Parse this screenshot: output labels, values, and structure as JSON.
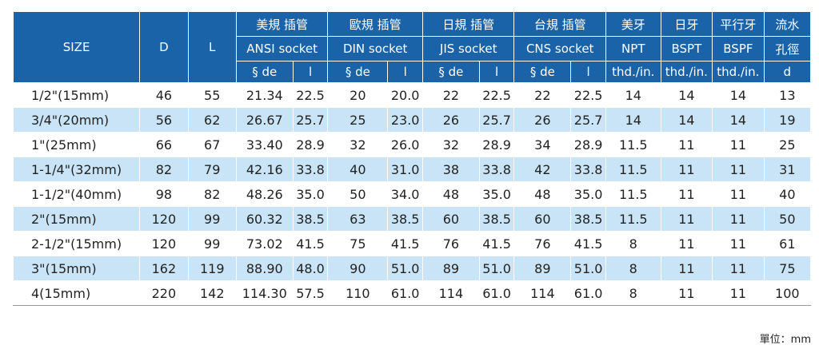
{
  "header": {
    "size": "SIZE",
    "d": "D",
    "l": "L",
    "groups": [
      {
        "cn": "美規 插管",
        "en": "ANSI socket"
      },
      {
        "cn": "歐規 插管",
        "en": "DIN socket"
      },
      {
        "cn": "日規 插管",
        "en": "JIS socket"
      },
      {
        "cn": "台規 插管",
        "en": "CNS socket"
      }
    ],
    "sub": [
      "§ de",
      "l"
    ],
    "threads": [
      {
        "cn": "美牙",
        "en": "NPT",
        "unit": "thd./in."
      },
      {
        "cn": "日牙",
        "en": "BSPT",
        "unit": "thd./in."
      },
      {
        "cn": "平行牙",
        "en": "BSPF",
        "unit": "thd./in."
      },
      {
        "cn": "流水",
        "en": "孔徑",
        "unit": "d"
      }
    ]
  },
  "rows": [
    {
      "size": "1/2\"(15mm)",
      "vals": [
        "46",
        "55",
        "21.34",
        "22.5",
        "20",
        "20.0",
        "22",
        "22.5",
        "22",
        "22.5",
        "14",
        "14",
        "14",
        "13"
      ]
    },
    {
      "size": "3/4\"(20mm)",
      "vals": [
        "56",
        "62",
        "26.67",
        "25.7",
        "25",
        "23.0",
        "26",
        "25.7",
        "26",
        "25.7",
        "14",
        "14",
        "14",
        "19"
      ]
    },
    {
      "size": "1\"(25mm)",
      "vals": [
        "66",
        "67",
        "33.40",
        "28.9",
        "32",
        "26.0",
        "32",
        "28.9",
        "34",
        "28.9",
        "11.5",
        "11",
        "11",
        "25"
      ]
    },
    {
      "size": "1-1/4\"(32mm)",
      "vals": [
        "82",
        "79",
        "42.16",
        "33.8",
        "40",
        "31.0",
        "38",
        "33.8",
        "42",
        "33.8",
        "11.5",
        "11",
        "11",
        "31"
      ]
    },
    {
      "size": "1-1/2\"(40mm)",
      "vals": [
        "98",
        "82",
        "48.26",
        "35.0",
        "50",
        "34.0",
        "48",
        "35.0",
        "48",
        "35.0",
        "11.5",
        "11",
        "11",
        "40"
      ]
    },
    {
      "size": "2\"(15mm)",
      "vals": [
        "120",
        "99",
        "60.32",
        "38.5",
        "63",
        "38.5",
        "60",
        "38.5",
        "60",
        "38.5",
        "11.5",
        "11",
        "11",
        "50"
      ]
    },
    {
      "size": "2-1/2\"(15mm)",
      "vals": [
        "120",
        "99",
        "73.02",
        "41.5",
        "75",
        "41.5",
        "76",
        "41.5",
        "76",
        "41.5",
        "8",
        "11",
        "11",
        "61"
      ]
    },
    {
      "size": "3\"(15mm)",
      "vals": [
        "162",
        "119",
        "88.90",
        "48.0",
        "90",
        "51.0",
        "89",
        "51.0",
        "89",
        "51.0",
        "8",
        "11",
        "11",
        "75"
      ]
    },
    {
      "size": "4(15mm)",
      "vals": [
        "220",
        "142",
        "114.30",
        "57.5",
        "110",
        "61.0",
        "114",
        "61.0",
        "114",
        "61.0",
        "8",
        "11",
        "11",
        "100"
      ]
    }
  ],
  "unit_note": "單位：mm",
  "colors": {
    "header": "#1a63a8",
    "shade": "#c8e4f6"
  }
}
